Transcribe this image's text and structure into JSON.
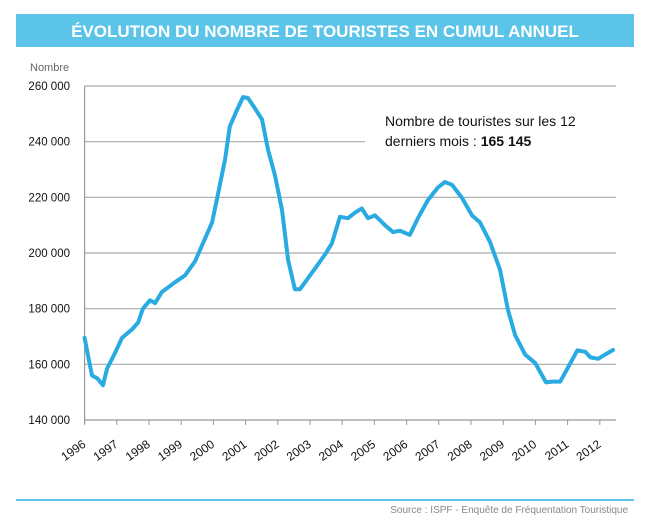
{
  "chart_data": {
    "type": "line",
    "title": "ÉVOLUTION DU NOMBRE DE TOURISTES EN CUMUL ANNUEL",
    "ylabel": "Nombre",
    "xlabel": "",
    "ylim": [
      140000,
      260000
    ],
    "xlim": [
      1996,
      2012
    ],
    "yticks": [
      "140 000",
      "160 000",
      "180 000",
      "200 000",
      "220 000",
      "240 000",
      "260 000"
    ],
    "ytick_values": [
      140000,
      160000,
      180000,
      200000,
      220000,
      240000,
      260000
    ],
    "xticks": [
      "1996",
      "1997",
      "1998",
      "1999",
      "2000",
      "2001",
      "2002",
      "2003",
      "2004",
      "2005",
      "2006",
      "2007",
      "2008",
      "2009",
      "2010",
      "2011",
      "2012"
    ],
    "grid": true,
    "line_color": "#29ABE2",
    "annotation": {
      "line1": "Nombre de touristes sur les 12",
      "line2": "derniers mois : ",
      "value": "165 145"
    },
    "series": [
      {
        "x": [
          1996.0,
          1996.11,
          1996.23,
          1996.39,
          1996.57,
          1996.7,
          1996.94,
          1997.16,
          1997.47,
          1997.66,
          1997.81,
          1998.03,
          1998.19,
          1998.4,
          1998.81,
          1999.12,
          1999.43,
          1999.75,
          1999.96,
          2000.14,
          2000.36,
          2000.51,
          2000.7,
          2000.92,
          2001.07,
          2001.29,
          2001.51,
          2001.7,
          2001.91,
          2002.13,
          2002.32,
          2002.53,
          2002.69,
          2002.91,
          2003.16,
          2003.47,
          2003.68,
          2003.93,
          2004.18,
          2004.4,
          2004.61,
          2004.8,
          2005.02,
          2005.33,
          2005.58,
          2005.79,
          2006.1,
          2006.35,
          2006.66,
          2006.97,
          2007.19,
          2007.41,
          2007.72,
          2008.03,
          2008.28,
          2008.59,
          2008.9,
          2009.15,
          2009.37,
          2009.68,
          2009.99,
          2010.33,
          2010.52,
          2010.77,
          2011.02,
          2011.3,
          2011.55,
          2011.71,
          2011.95,
          2012.16,
          2012.41
        ],
        "values": [
          169500,
          163000,
          156000,
          155000,
          152500,
          158500,
          164000,
          169500,
          172500,
          175000,
          180000,
          183000,
          182000,
          186000,
          189500,
          192000,
          197000,
          205500,
          211000,
          221000,
          233500,
          245500,
          250500,
          256000,
          255700,
          252000,
          248000,
          237000,
          228000,
          215500,
          197500,
          187000,
          187000,
          190500,
          194500,
          199500,
          203500,
          213000,
          212500,
          214500,
          216000,
          212500,
          213500,
          210000,
          207500,
          208000,
          206500,
          212500,
          219000,
          223500,
          225500,
          224500,
          219800,
          213500,
          211000,
          204000,
          194000,
          179500,
          170500,
          163500,
          160500,
          153500,
          153800,
          153800,
          159000,
          165000,
          164500,
          162500,
          162000,
          163500,
          165145
        ]
      }
    ]
  },
  "footer": {
    "source": "Source : ISPF - Enquête de Fréquentation Touristique",
    "accent_color": "#5BC4E8"
  }
}
